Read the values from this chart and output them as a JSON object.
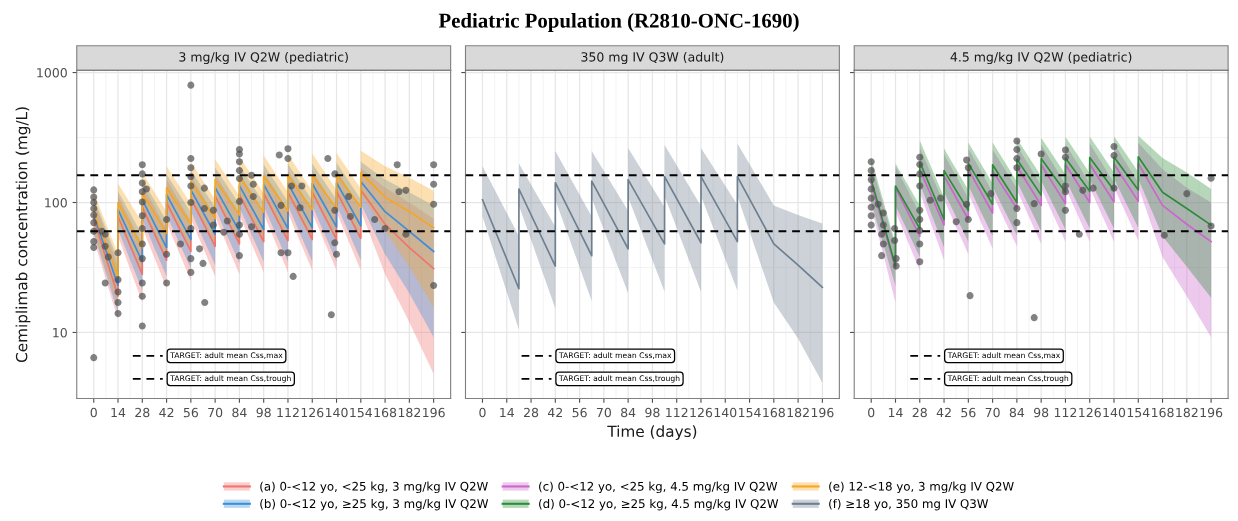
{
  "chart_data": [
    {
      "type": "line",
      "title": "3 mg/kg IV Q2W (pediatric)",
      "ylabel": "Cemiplimab concentration (mg/L)",
      "annotations": [
        "Pediatric Population (R2810-ONC-1690)"
      ],
      "log": true,
      "grid": true,
      "legend": "bottom",
      "xlim": [
        -9.8,
        205.8
      ],
      "xticks": [
        0,
        14,
        28,
        42,
        56,
        70,
        84,
        98,
        112,
        126,
        140,
        154,
        168,
        182,
        196
      ],
      "ylim": [
        3.1,
        1040
      ],
      "yticks": [
        10,
        100,
        1000
      ],
      "ref_lines": [
        {
          "axis": "y",
          "value": 162,
          "label": "TARGET: adult mean Css,max",
          "color": "#000000",
          "line_style": "dashed"
        },
        {
          "axis": "y",
          "value": 60,
          "label": "TARGET: adult mean Css,trough",
          "color": "#000000",
          "line_style": "dashed"
        }
      ],
      "series": [
        {
          "name": "(a) 0-<12 yo, <25 kg, 3 mg/kg IV Q2W",
          "color": "#f0746e",
          "x": [
            0,
            14,
            14,
            28,
            28,
            42,
            42,
            56,
            56,
            70,
            70,
            84,
            84,
            98,
            98,
            112,
            112,
            126,
            126,
            140,
            140,
            154,
            154,
            168,
            182,
            196
          ],
          "values": [
            75,
            19,
            78,
            28,
            92,
            36,
            100,
            42,
            108,
            46,
            112,
            48,
            115,
            50,
            118,
            51,
            120,
            52,
            120,
            52,
            122,
            53,
            125,
            68,
            45,
            31
          ],
          "lower": [
            52,
            12.5,
            55,
            17,
            64,
            22,
            70,
            25,
            75,
            27,
            78,
            28,
            80,
            29,
            82,
            29,
            83,
            30,
            83,
            30,
            84,
            30,
            86,
            28,
            12,
            4.8
          ],
          "upper": [
            105,
            32,
            112,
            48,
            138,
            62,
            150,
            72,
            160,
            78,
            166,
            82,
            170,
            84,
            174,
            86,
            176,
            87,
            178,
            88,
            180,
            88,
            184,
            130,
            100,
            75
          ]
        },
        {
          "name": "(b) 0-<12 yo, ≥25 kg, 3 mg/kg IV Q2W",
          "color": "#3a8edb",
          "x": [
            0,
            14,
            14,
            28,
            28,
            42,
            42,
            56,
            56,
            70,
            70,
            84,
            84,
            98,
            98,
            112,
            112,
            126,
            126,
            140,
            140,
            154,
            154,
            168,
            182,
            196
          ],
          "values": [
            80,
            23,
            88,
            35,
            105,
            45,
            115,
            52,
            125,
            57,
            130,
            60,
            135,
            62,
            138,
            63,
            140,
            64,
            140,
            65,
            142,
            66,
            145,
            85,
            60,
            42
          ],
          "lower": [
            58,
            14,
            62,
            21,
            74,
            27,
            80,
            31,
            86,
            33,
            90,
            34,
            92,
            35,
            94,
            35,
            95,
            35,
            95,
            35,
            96,
            36,
            98,
            40,
            20,
            9.2
          ],
          "upper": [
            110,
            36,
            122,
            56,
            150,
            72,
            165,
            84,
            178,
            92,
            186,
            97,
            192,
            100,
            196,
            102,
            198,
            104,
            200,
            105,
            202,
            106,
            206,
            150,
            120,
            95
          ]
        },
        {
          "name": "(e) 12-<18 yo, 3 mg/kg IV Q2W",
          "color": "#f5a623",
          "x": [
            0,
            14,
            14,
            28,
            28,
            42,
            42,
            56,
            56,
            70,
            70,
            84,
            84,
            98,
            98,
            112,
            112,
            126,
            126,
            140,
            140,
            154,
            154,
            168,
            182,
            196
          ],
          "values": [
            85,
            27,
            100,
            45,
            118,
            58,
            130,
            68,
            145,
            75,
            150,
            80,
            158,
            84,
            160,
            86,
            162,
            88,
            163,
            90,
            165,
            92,
            170,
            110,
            85,
            64
          ],
          "lower": [
            60,
            16,
            70,
            28,
            85,
            36,
            92,
            42,
            100,
            45,
            105,
            47,
            108,
            48,
            110,
            49,
            110,
            50,
            112,
            50,
            112,
            51,
            115,
            60,
            32,
            15.6
          ],
          "upper": [
            120,
            40,
            140,
            70,
            170,
            85,
            190,
            98,
            205,
            105,
            215,
            112,
            225,
            118,
            230,
            120,
            235,
            122,
            238,
            125,
            240,
            128,
            250,
            190,
            155,
            123
          ]
        },
        {
          "type": "scatter",
          "marker": "circle",
          "color": "#4d4d4d",
          "x": [
            0,
            0,
            0,
            0,
            0,
            0,
            0,
            0,
            0,
            0,
            4.7,
            6.6,
            6.6,
            8.4,
            6.6,
            14,
            14,
            14,
            14,
            14,
            28,
            28,
            28,
            28,
            28,
            28,
            28,
            28,
            28,
            28,
            28,
            28,
            30.4,
            42,
            42,
            42,
            50,
            56,
            56,
            56,
            56,
            56,
            56,
            56,
            56,
            56,
            63.8,
            61,
            63,
            64,
            63.8,
            69,
            69,
            77,
            75,
            84,
            84,
            84,
            84,
            84,
            84,
            84,
            84,
            84,
            91,
            92,
            92,
            91,
            107,
            112,
            112,
            108,
            114,
            112,
            108,
            115,
            120,
            119,
            135,
            139,
            139,
            140,
            139,
            137,
            147,
            148,
            162,
            168,
            175,
            176,
            180,
            180,
            196,
            196,
            196,
            196
          ],
          "values": [
            6.4,
            125,
            110,
            100,
            90,
            80,
            70,
            60,
            50,
            45,
            60,
            57,
            46,
            38,
            24,
            41,
            25.5,
            20.5,
            17,
            14,
            195,
            166,
            141,
            121,
            101,
            79,
            63,
            48,
            37,
            24,
            19,
            11.2,
            127,
            74,
            40,
            24,
            48,
            800,
            218,
            185,
            158,
            134,
            100,
            63,
            37,
            29,
            129,
            44,
            34,
            17,
            90,
            87,
            67,
            72,
            59,
            256,
            236,
            206,
            176,
            153,
            102,
            67,
            57,
            39,
            162,
            138,
            111,
            65,
            232,
            259,
            218,
            95,
            134,
            41,
            41,
            27,
            134,
            91,
            218,
            166,
            87,
            40,
            49,
            13.7,
            111,
            78,
            74,
            63,
            195,
            121,
            124,
            57,
            195,
            138,
            97,
            23
          ]
        }
      ]
    },
    {
      "type": "line",
      "title": "350 mg IV Q3W (adult)",
      "xlabel": "Time (days)",
      "log": true,
      "grid": true,
      "legend": "bottom",
      "tick_labels": "x",
      "xlim": [
        -9.8,
        205.8
      ],
      "xticks": [
        0,
        14,
        28,
        42,
        56,
        70,
        84,
        98,
        112,
        126,
        140,
        154,
        168,
        182,
        196
      ],
      "ylim": [
        3.1,
        1040
      ],
      "yticks": [
        10,
        100,
        1000
      ],
      "ref_lines": [
        {
          "axis": "y",
          "value": 162,
          "label": "TARGET: adult mean Css,max",
          "color": "#000000",
          "line_style": "dashed"
        },
        {
          "axis": "y",
          "value": 60,
          "label": "TARGET: adult mean Css,trough",
          "color": "#000000",
          "line_style": "dashed"
        }
      ],
      "series": [
        {
          "name": "(f) ≥18 yo, 350 mg IV Q3W",
          "color": "#6e7f8f",
          "x": [
            0,
            21,
            21,
            42,
            42,
            63,
            63,
            84,
            84,
            105,
            105,
            126,
            126,
            147,
            147,
            168,
            182,
            196
          ],
          "values": [
            105,
            21.7,
            127,
            32.4,
            142,
            39,
            146,
            44,
            150,
            48,
            158,
            49,
            158,
            50,
            158,
            48,
            33,
            22.3
          ],
          "lower": [
            78,
            10.5,
            95,
            15.3,
            105,
            17.5,
            108,
            20,
            110,
            20.6,
            112,
            20.6,
            112,
            21,
            112,
            17,
            9,
            4.1
          ],
          "upper": [
            190,
            55,
            200,
            65,
            249,
            78,
            249,
            86,
            263,
            92,
            277,
            94,
            263,
            96,
            285,
            95,
            80,
            69
          ]
        }
      ]
    },
    {
      "type": "line",
      "title": "4.5 mg/kg IV Q2W (pediatric)",
      "log": true,
      "grid": true,
      "legend": "bottom",
      "tick_labels": "x",
      "xlim": [
        -9.8,
        205.8
      ],
      "xticks": [
        0,
        14,
        28,
        42,
        56,
        70,
        84,
        98,
        112,
        126,
        140,
        154,
        168,
        182,
        196
      ],
      "ylim": [
        3.1,
        1040
      ],
      "yticks": [
        10,
        100,
        1000
      ],
      "ref_lines": [
        {
          "axis": "y",
          "value": 162,
          "label": "TARGET: adult mean Css,max",
          "color": "#000000",
          "line_style": "dashed"
        },
        {
          "axis": "y",
          "value": 60,
          "label": "TARGET: adult mean Css,trough",
          "color": "#000000",
          "line_style": "dashed"
        }
      ],
      "series": [
        {
          "name": "(c) 0-<12 yo, <25 kg, 4.5 mg/kg IV Q2W",
          "color": "#cc66cc",
          "x": [
            0,
            14,
            14,
            28,
            28,
            42,
            42,
            56,
            56,
            70,
            70,
            84,
            84,
            98,
            98,
            112,
            112,
            126,
            126,
            140,
            140,
            154,
            154,
            168,
            182,
            196
          ],
          "values": [
            140,
            31,
            130,
            55,
            180,
            67,
            160,
            74,
            180,
            83,
            175,
            90,
            190,
            95,
            195,
            98,
            196,
            100,
            198,
            101,
            198,
            102,
            200,
            95,
            68,
            50
          ],
          "lower": [
            92,
            17,
            85,
            30,
            120,
            36,
            105,
            40,
            118,
            44,
            115,
            46,
            125,
            48,
            128,
            50,
            130,
            50,
            130,
            50,
            131,
            51,
            132,
            38,
            19,
            9.2
          ],
          "upper": [
            200,
            45,
            190,
            82,
            265,
            98,
            235,
            108,
            260,
            120,
            255,
            128,
            275,
            135,
            280,
            138,
            282,
            140,
            285,
            142,
            285,
            142,
            288,
            180,
            130,
            100
          ]
        },
        {
          "name": "(d) 0-<12 yo, ≥25 kg, 4.5 mg/kg IV Q2W",
          "color": "#2e8b3a",
          "x": [
            0,
            14,
            14,
            28,
            28,
            42,
            42,
            56,
            56,
            70,
            70,
            84,
            84,
            98,
            98,
            112,
            112,
            126,
            126,
            140,
            140,
            154,
            154,
            168,
            182,
            196
          ],
          "values": [
            150,
            32.4,
            134,
            63,
            205,
            74,
            176,
            87,
            200,
            97,
            195,
            100,
            215,
            114,
            218,
            120,
            220,
            122,
            222,
            124,
            224,
            125,
            225,
            120,
            90,
            67
          ],
          "lower": [
            100,
            22.8,
            95,
            38,
            140,
            45,
            120,
            50,
            135,
            55,
            132,
            56,
            145,
            60,
            148,
            62,
            150,
            63,
            150,
            63,
            152,
            64,
            152,
            55,
            32,
            18.5
          ],
          "upper": [
            220,
            48,
            200,
            95,
            300,
            110,
            260,
            125,
            290,
            140,
            290,
            145,
            310,
            160,
            315,
            165,
            320,
            168,
            322,
            170,
            324,
            172,
            326,
            220,
            170,
            127
          ]
        },
        {
          "type": "scatter",
          "marker": "circle",
          "color": "#4d4d4d",
          "x": [
            0,
            0,
            0,
            0,
            0,
            0,
            0,
            0,
            4,
            7,
            7,
            6,
            7,
            6,
            13.5,
            14.4,
            14.4,
            13.5,
            28,
            28,
            28,
            28,
            28,
            28,
            28,
            28,
            28,
            34,
            40,
            49,
            55,
            56,
            55,
            56,
            57,
            69,
            84,
            84,
            84,
            84,
            84,
            84,
            94,
            94,
            98,
            112,
            112,
            112,
            112,
            112,
            120,
            122,
            128,
            140,
            140,
            140,
            169,
            182,
            196,
            196
          ],
          "values": [
            206,
            176,
            150,
            127,
            108,
            92,
            79,
            67,
            97,
            83,
            67,
            57,
            48,
            39,
            51,
            37,
            32.4,
            63,
            223,
            196,
            166,
            134,
            87,
            74,
            61,
            48,
            35,
            104,
            108,
            71,
            212,
            185,
            97,
            74,
            19.2,
            117,
            297,
            256,
            218,
            185,
            90,
            70,
            13,
            98,
            236,
            253,
            223,
            134,
            121,
            87,
            57,
            124,
            129,
            270,
            230,
            129,
            56,
            117,
            154,
            66
          ]
        }
      ]
    }
  ]
}
